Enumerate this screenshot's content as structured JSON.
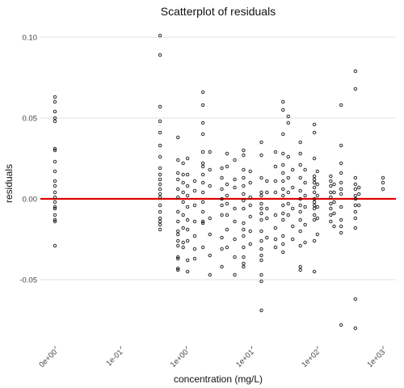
{
  "chart_data": {
    "type": "scatter",
    "title": "Scatterplot of residuals",
    "xlabel": "concentration (mg/L)",
    "ylabel": "residuals",
    "x_scale": "log10 (zero shown at the left end)",
    "x_ticks": [
      "0e+00",
      "1e-01",
      "1e+00",
      "1e+01",
      "1e+02",
      "1e+03"
    ],
    "x_tick_values": [
      0,
      0.1,
      1,
      10,
      100,
      1000
    ],
    "y_ticks": [
      "-0.05",
      "0.00",
      "0.05",
      "0.10"
    ],
    "y_tick_values": [
      -0.05,
      0,
      0.05,
      0.1
    ],
    "ylim": [
      -0.09,
      0.102
    ],
    "grid": true,
    "reference_line": {
      "y": 0,
      "color": "#e00000"
    },
    "point_color": "#000000",
    "points": [
      [
        0,
        0.063
      ],
      [
        0,
        0.06
      ],
      [
        0,
        0.054
      ],
      [
        0,
        0.05
      ],
      [
        0,
        0.048
      ],
      [
        0,
        0.031
      ],
      [
        0,
        0.03
      ],
      [
        0,
        0.023
      ],
      [
        0,
        0.017
      ],
      [
        0,
        0.011
      ],
      [
        0,
        0.008
      ],
      [
        0,
        0.004
      ],
      [
        0,
        0.001
      ],
      [
        0,
        -0.002
      ],
      [
        0,
        -0.005
      ],
      [
        0,
        -0.006
      ],
      [
        0,
        -0.01
      ],
      [
        0,
        -0.013
      ],
      [
        0,
        -0.014
      ],
      [
        0,
        -0.029
      ],
      [
        0.4,
        0.101
      ],
      [
        0.4,
        0.089
      ],
      [
        0.4,
        0.057
      ],
      [
        0.4,
        0.048
      ],
      [
        0.4,
        0.041
      ],
      [
        0.4,
        0.033
      ],
      [
        0.4,
        0.026
      ],
      [
        0.4,
        0.019
      ],
      [
        0.4,
        0.015
      ],
      [
        0.4,
        0.012
      ],
      [
        0.4,
        0.009
      ],
      [
        0.4,
        0.006
      ],
      [
        0.4,
        0.003
      ],
      [
        0.4,
        0.001
      ],
      [
        0.4,
        -0.004
      ],
      [
        0.4,
        -0.008
      ],
      [
        0.4,
        -0.012
      ],
      [
        0.4,
        -0.014
      ],
      [
        0.4,
        -0.016
      ],
      [
        0.4,
        -0.019
      ],
      [
        0.75,
        0.038
      ],
      [
        0.75,
        0.024
      ],
      [
        0.75,
        0.016
      ],
      [
        0.75,
        0.012
      ],
      [
        0.75,
        0.006
      ],
      [
        0.75,
        0.001
      ],
      [
        0.75,
        -0.008
      ],
      [
        0.75,
        -0.014
      ],
      [
        0.75,
        -0.02
      ],
      [
        0.75,
        -0.022
      ],
      [
        0.75,
        -0.026
      ],
      [
        0.75,
        -0.029
      ],
      [
        0.75,
        -0.036
      ],
      [
        0.75,
        -0.037
      ],
      [
        0.75,
        -0.043
      ],
      [
        0.75,
        -0.044
      ],
      [
        0.9,
        0.022
      ],
      [
        0.9,
        0.015
      ],
      [
        0.9,
        0.01
      ],
      [
        0.9,
        0.004
      ],
      [
        0.9,
        -0.002
      ],
      [
        0.9,
        -0.01
      ],
      [
        0.9,
        -0.018
      ],
      [
        0.9,
        -0.027
      ],
      [
        0.9,
        -0.03
      ],
      [
        1.05,
        0.025
      ],
      [
        1.05,
        0.015
      ],
      [
        1.05,
        0.008
      ],
      [
        1.05,
        0.002
      ],
      [
        1.05,
        -0.005
      ],
      [
        1.05,
        -0.013
      ],
      [
        1.05,
        -0.019
      ],
      [
        1.05,
        -0.026
      ],
      [
        1.05,
        -0.038
      ],
      [
        1.05,
        -0.045
      ],
      [
        1.35,
        0.011
      ],
      [
        1.35,
        0.005
      ],
      [
        1.35,
        -0.004
      ],
      [
        1.35,
        -0.014
      ],
      [
        1.35,
        -0.023
      ],
      [
        1.35,
        -0.031
      ],
      [
        1.35,
        -0.037
      ],
      [
        1.8,
        0.066
      ],
      [
        1.8,
        0.058
      ],
      [
        1.8,
        0.047
      ],
      [
        1.8,
        0.04
      ],
      [
        1.8,
        0.029
      ],
      [
        1.8,
        0.022
      ],
      [
        1.8,
        0.02
      ],
      [
        1.8,
        0.015
      ],
      [
        1.8,
        0.01
      ],
      [
        1.8,
        0.004
      ],
      [
        1.8,
        -0.002
      ],
      [
        1.8,
        -0.008
      ],
      [
        1.8,
        -0.014
      ],
      [
        1.8,
        -0.015
      ],
      [
        1.8,
        -0.03
      ],
      [
        2.3,
        0.029
      ],
      [
        2.3,
        0.018
      ],
      [
        2.3,
        0.008
      ],
      [
        2.3,
        -0.012
      ],
      [
        2.3,
        -0.022
      ],
      [
        2.3,
        -0.035
      ],
      [
        2.3,
        -0.047
      ],
      [
        3.5,
        0.019
      ],
      [
        3.5,
        0.013
      ],
      [
        3.5,
        0.006
      ],
      [
        3.5,
        0.0
      ],
      [
        3.5,
        -0.004
      ],
      [
        3.5,
        -0.01
      ],
      [
        3.5,
        -0.024
      ],
      [
        3.5,
        -0.031
      ],
      [
        3.5,
        -0.042
      ],
      [
        4.2,
        0.028
      ],
      [
        4.2,
        0.02
      ],
      [
        4.2,
        0.009
      ],
      [
        4.2,
        0.002
      ],
      [
        4.2,
        -0.003
      ],
      [
        4.2,
        -0.01
      ],
      [
        4.2,
        -0.019
      ],
      [
        4.2,
        -0.03
      ],
      [
        5.5,
        0.024
      ],
      [
        5.5,
        0.012
      ],
      [
        5.5,
        0.007
      ],
      [
        5.5,
        -0.006
      ],
      [
        5.5,
        -0.014
      ],
      [
        5.5,
        -0.025
      ],
      [
        5.5,
        -0.036
      ],
      [
        5.5,
        -0.047
      ],
      [
        7.5,
        0.03
      ],
      [
        7.5,
        0.027
      ],
      [
        7.5,
        0.018
      ],
      [
        7.5,
        0.013
      ],
      [
        7.5,
        0.008
      ],
      [
        7.5,
        0.003
      ],
      [
        7.5,
        -0.001
      ],
      [
        7.5,
        -0.006
      ],
      [
        7.5,
        -0.015
      ],
      [
        7.5,
        -0.019
      ],
      [
        7.5,
        -0.023
      ],
      [
        7.5,
        -0.03
      ],
      [
        7.5,
        -0.036
      ],
      [
        7.5,
        -0.04
      ],
      [
        7.5,
        -0.042
      ],
      [
        9.5,
        0.017
      ],
      [
        9.5,
        0.01
      ],
      [
        9.5,
        0.001
      ],
      [
        9.5,
        -0.004
      ],
      [
        9.5,
        -0.011
      ],
      [
        9.5,
        -0.02
      ],
      [
        9.5,
        -0.028
      ],
      [
        14,
        0.035
      ],
      [
        14,
        0.027
      ],
      [
        14,
        0.013
      ],
      [
        14,
        0.004
      ],
      [
        14,
        0.002
      ],
      [
        14,
        -0.003
      ],
      [
        14,
        -0.006
      ],
      [
        14,
        -0.009
      ],
      [
        14,
        -0.013
      ],
      [
        14,
        -0.02
      ],
      [
        14,
        -0.026
      ],
      [
        14,
        -0.031
      ],
      [
        14,
        -0.035
      ],
      [
        14,
        -0.038
      ],
      [
        14,
        -0.047
      ],
      [
        14,
        -0.051
      ],
      [
        14,
        -0.069
      ],
      [
        17,
        0.011
      ],
      [
        17,
        0.004
      ],
      [
        17,
        -0.006
      ],
      [
        17,
        -0.012
      ],
      [
        17,
        -0.024
      ],
      [
        23,
        0.029
      ],
      [
        23,
        0.02
      ],
      [
        23,
        0.011
      ],
      [
        23,
        0.004
      ],
      [
        23,
        -0.01
      ],
      [
        23,
        -0.018
      ],
      [
        23,
        -0.025
      ],
      [
        23,
        -0.03
      ],
      [
        30,
        0.06
      ],
      [
        30,
        0.055
      ],
      [
        30,
        0.04
      ],
      [
        30,
        0.028
      ],
      [
        30,
        0.021
      ],
      [
        30,
        0.016
      ],
      [
        30,
        0.011
      ],
      [
        30,
        0.006
      ],
      [
        30,
        0.002
      ],
      [
        30,
        -0.004
      ],
      [
        30,
        -0.009
      ],
      [
        30,
        -0.013
      ],
      [
        30,
        -0.023
      ],
      [
        30,
        -0.028
      ],
      [
        30,
        -0.033
      ],
      [
        36,
        0.051
      ],
      [
        36,
        0.047
      ],
      [
        36,
        0.026
      ],
      [
        36,
        0.013
      ],
      [
        36,
        0.004
      ],
      [
        36,
        -0.003
      ],
      [
        36,
        -0.01
      ],
      [
        42,
        0.018
      ],
      [
        42,
        0.007
      ],
      [
        42,
        -0.006
      ],
      [
        42,
        -0.017
      ],
      [
        42,
        -0.025
      ],
      [
        55,
        0.035
      ],
      [
        55,
        0.028
      ],
      [
        55,
        0.021
      ],
      [
        55,
        0.013
      ],
      [
        55,
        0.005
      ],
      [
        55,
        0.0
      ],
      [
        55,
        -0.004
      ],
      [
        55,
        -0.008
      ],
      [
        55,
        -0.013
      ],
      [
        55,
        -0.02
      ],
      [
        55,
        -0.029
      ],
      [
        55,
        -0.042
      ],
      [
        55,
        -0.044
      ],
      [
        65,
        0.018
      ],
      [
        65,
        0.01
      ],
      [
        65,
        0.002
      ],
      [
        65,
        -0.005
      ],
      [
        65,
        -0.016
      ],
      [
        65,
        -0.027
      ],
      [
        90,
        0.046
      ],
      [
        90,
        0.041
      ],
      [
        90,
        0.025
      ],
      [
        90,
        0.014
      ],
      [
        90,
        0.012
      ],
      [
        90,
        0.01
      ],
      [
        90,
        0.007
      ],
      [
        90,
        0.004
      ],
      [
        90,
        0.0
      ],
      [
        90,
        -0.002
      ],
      [
        90,
        -0.004
      ],
      [
        90,
        -0.006
      ],
      [
        90,
        -0.01
      ],
      [
        90,
        -0.013
      ],
      [
        90,
        -0.026
      ],
      [
        90,
        -0.045
      ],
      [
        100,
        0.017
      ],
      [
        100,
        0.009
      ],
      [
        100,
        0.002
      ],
      [
        100,
        -0.005
      ],
      [
        100,
        -0.012
      ],
      [
        100,
        -0.022
      ],
      [
        160,
        0.014
      ],
      [
        160,
        0.011
      ],
      [
        160,
        0.008
      ],
      [
        160,
        0.004
      ],
      [
        160,
        0.001
      ],
      [
        160,
        -0.003
      ],
      [
        160,
        -0.006
      ],
      [
        160,
        -0.01
      ],
      [
        160,
        -0.014
      ],
      [
        180,
        0.009
      ],
      [
        180,
        0.004
      ],
      [
        180,
        -0.002
      ],
      [
        180,
        -0.009
      ],
      [
        180,
        -0.017
      ],
      [
        230,
        0.058
      ],
      [
        230,
        0.033
      ],
      [
        230,
        0.022
      ],
      [
        230,
        0.016
      ],
      [
        230,
        0.01
      ],
      [
        230,
        0.006
      ],
      [
        230,
        0.003
      ],
      [
        230,
        -0.005
      ],
      [
        230,
        -0.013
      ],
      [
        230,
        -0.017
      ],
      [
        230,
        -0.021
      ],
      [
        230,
        -0.078
      ],
      [
        380,
        0.079
      ],
      [
        380,
        0.068
      ],
      [
        380,
        0.013
      ],
      [
        380,
        0.009
      ],
      [
        380,
        0.006
      ],
      [
        380,
        0.002
      ],
      [
        380,
        0.0
      ],
      [
        380,
        -0.004
      ],
      [
        380,
        -0.008
      ],
      [
        380,
        -0.012
      ],
      [
        380,
        -0.018
      ],
      [
        380,
        -0.062
      ],
      [
        380,
        -0.08
      ],
      [
        430,
        0.007
      ],
      [
        430,
        0.003
      ],
      [
        430,
        -0.004
      ],
      [
        1000,
        0.013
      ],
      [
        1000,
        0.01
      ],
      [
        1000,
        0.006
      ]
    ]
  }
}
